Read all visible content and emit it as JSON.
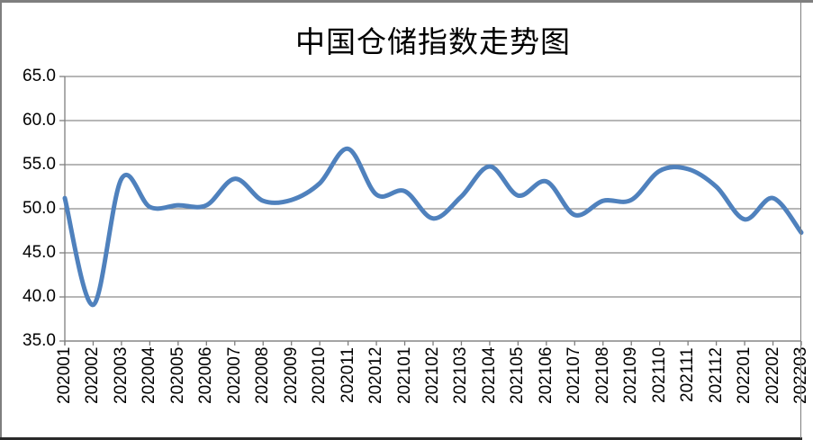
{
  "window": {
    "background": "#ffffff",
    "frame_color": "#7f7f7f",
    "frame_bottom_color": "#2a2a2a"
  },
  "chart_data": {
    "type": "line",
    "title": "中国仓储指数走势图",
    "xlabel": "",
    "ylabel": "",
    "legend": "none",
    "grid": "horizontal",
    "smoothed": true,
    "line_color": "#4F81BD",
    "line_width": 5,
    "grid_color": "#8c8c8c",
    "axis_color": "#7f7f7f",
    "text_color": "#000000",
    "ylim": [
      35.0,
      65.0
    ],
    "ytick_values": [
      65,
      60,
      55,
      50,
      45,
      40,
      35
    ],
    "ytick_labels": [
      "65.0",
      "60.0",
      "55.0",
      "50.0",
      "45.0",
      "40.0",
      "35.0"
    ],
    "categories": [
      "202001",
      "202002",
      "202003",
      "202004",
      "202005",
      "202006",
      "202007",
      "202008",
      "202009",
      "202010",
      "202011",
      "202012",
      "202101",
      "202102",
      "202103",
      "202104",
      "202105",
      "202106",
      "202107",
      "202108",
      "202109",
      "202110",
      "202111",
      "202112",
      "202201",
      "202202",
      "202203"
    ],
    "values": [
      51.2,
      39.1,
      53.4,
      50.2,
      50.4,
      50.4,
      53.4,
      50.9,
      51.0,
      52.9,
      56.8,
      51.6,
      52.0,
      48.9,
      51.4,
      54.8,
      51.5,
      53.1,
      49.3,
      50.9,
      51.0,
      54.3,
      54.5,
      52.5,
      48.8,
      51.2,
      47.3
    ]
  }
}
